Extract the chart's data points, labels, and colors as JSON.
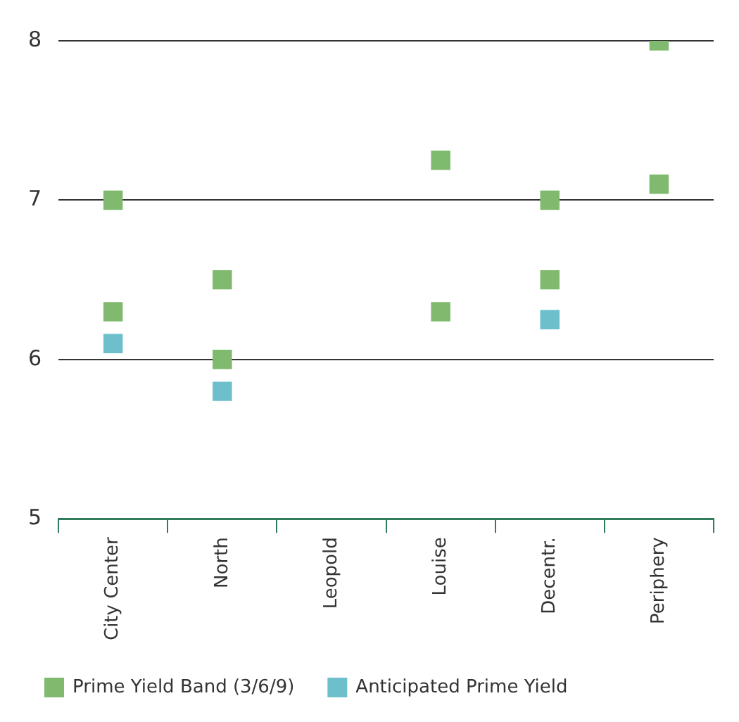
{
  "chart_data": {
    "type": "scatter",
    "categories": [
      "City Center",
      "North",
      "Leopold",
      "Louise",
      "Decentr.",
      "Periphery"
    ],
    "series": [
      {
        "name": "Prime Yield Band (3/6/9)",
        "color": "#7fba6e",
        "x": [
          "City Center",
          "City Center",
          "North",
          "North",
          "Louise",
          "Louise",
          "Decentr.",
          "Decentr.",
          "Periphery",
          "Periphery"
        ],
        "values": [
          7.0,
          6.3,
          6.5,
          6.0,
          7.25,
          6.3,
          7.0,
          6.5,
          8.0,
          7.1
        ]
      },
      {
        "name": "Anticipated Prime Yield",
        "color": "#6cbfcb",
        "x": [
          "City Center",
          "North",
          "Decentr."
        ],
        "values": [
          6.1,
          5.8,
          6.25
        ]
      }
    ],
    "ylim": [
      5,
      8
    ],
    "yticks": [
      5,
      6,
      7,
      8
    ],
    "grid": "y",
    "legend": "bottom",
    "marker": "square"
  }
}
